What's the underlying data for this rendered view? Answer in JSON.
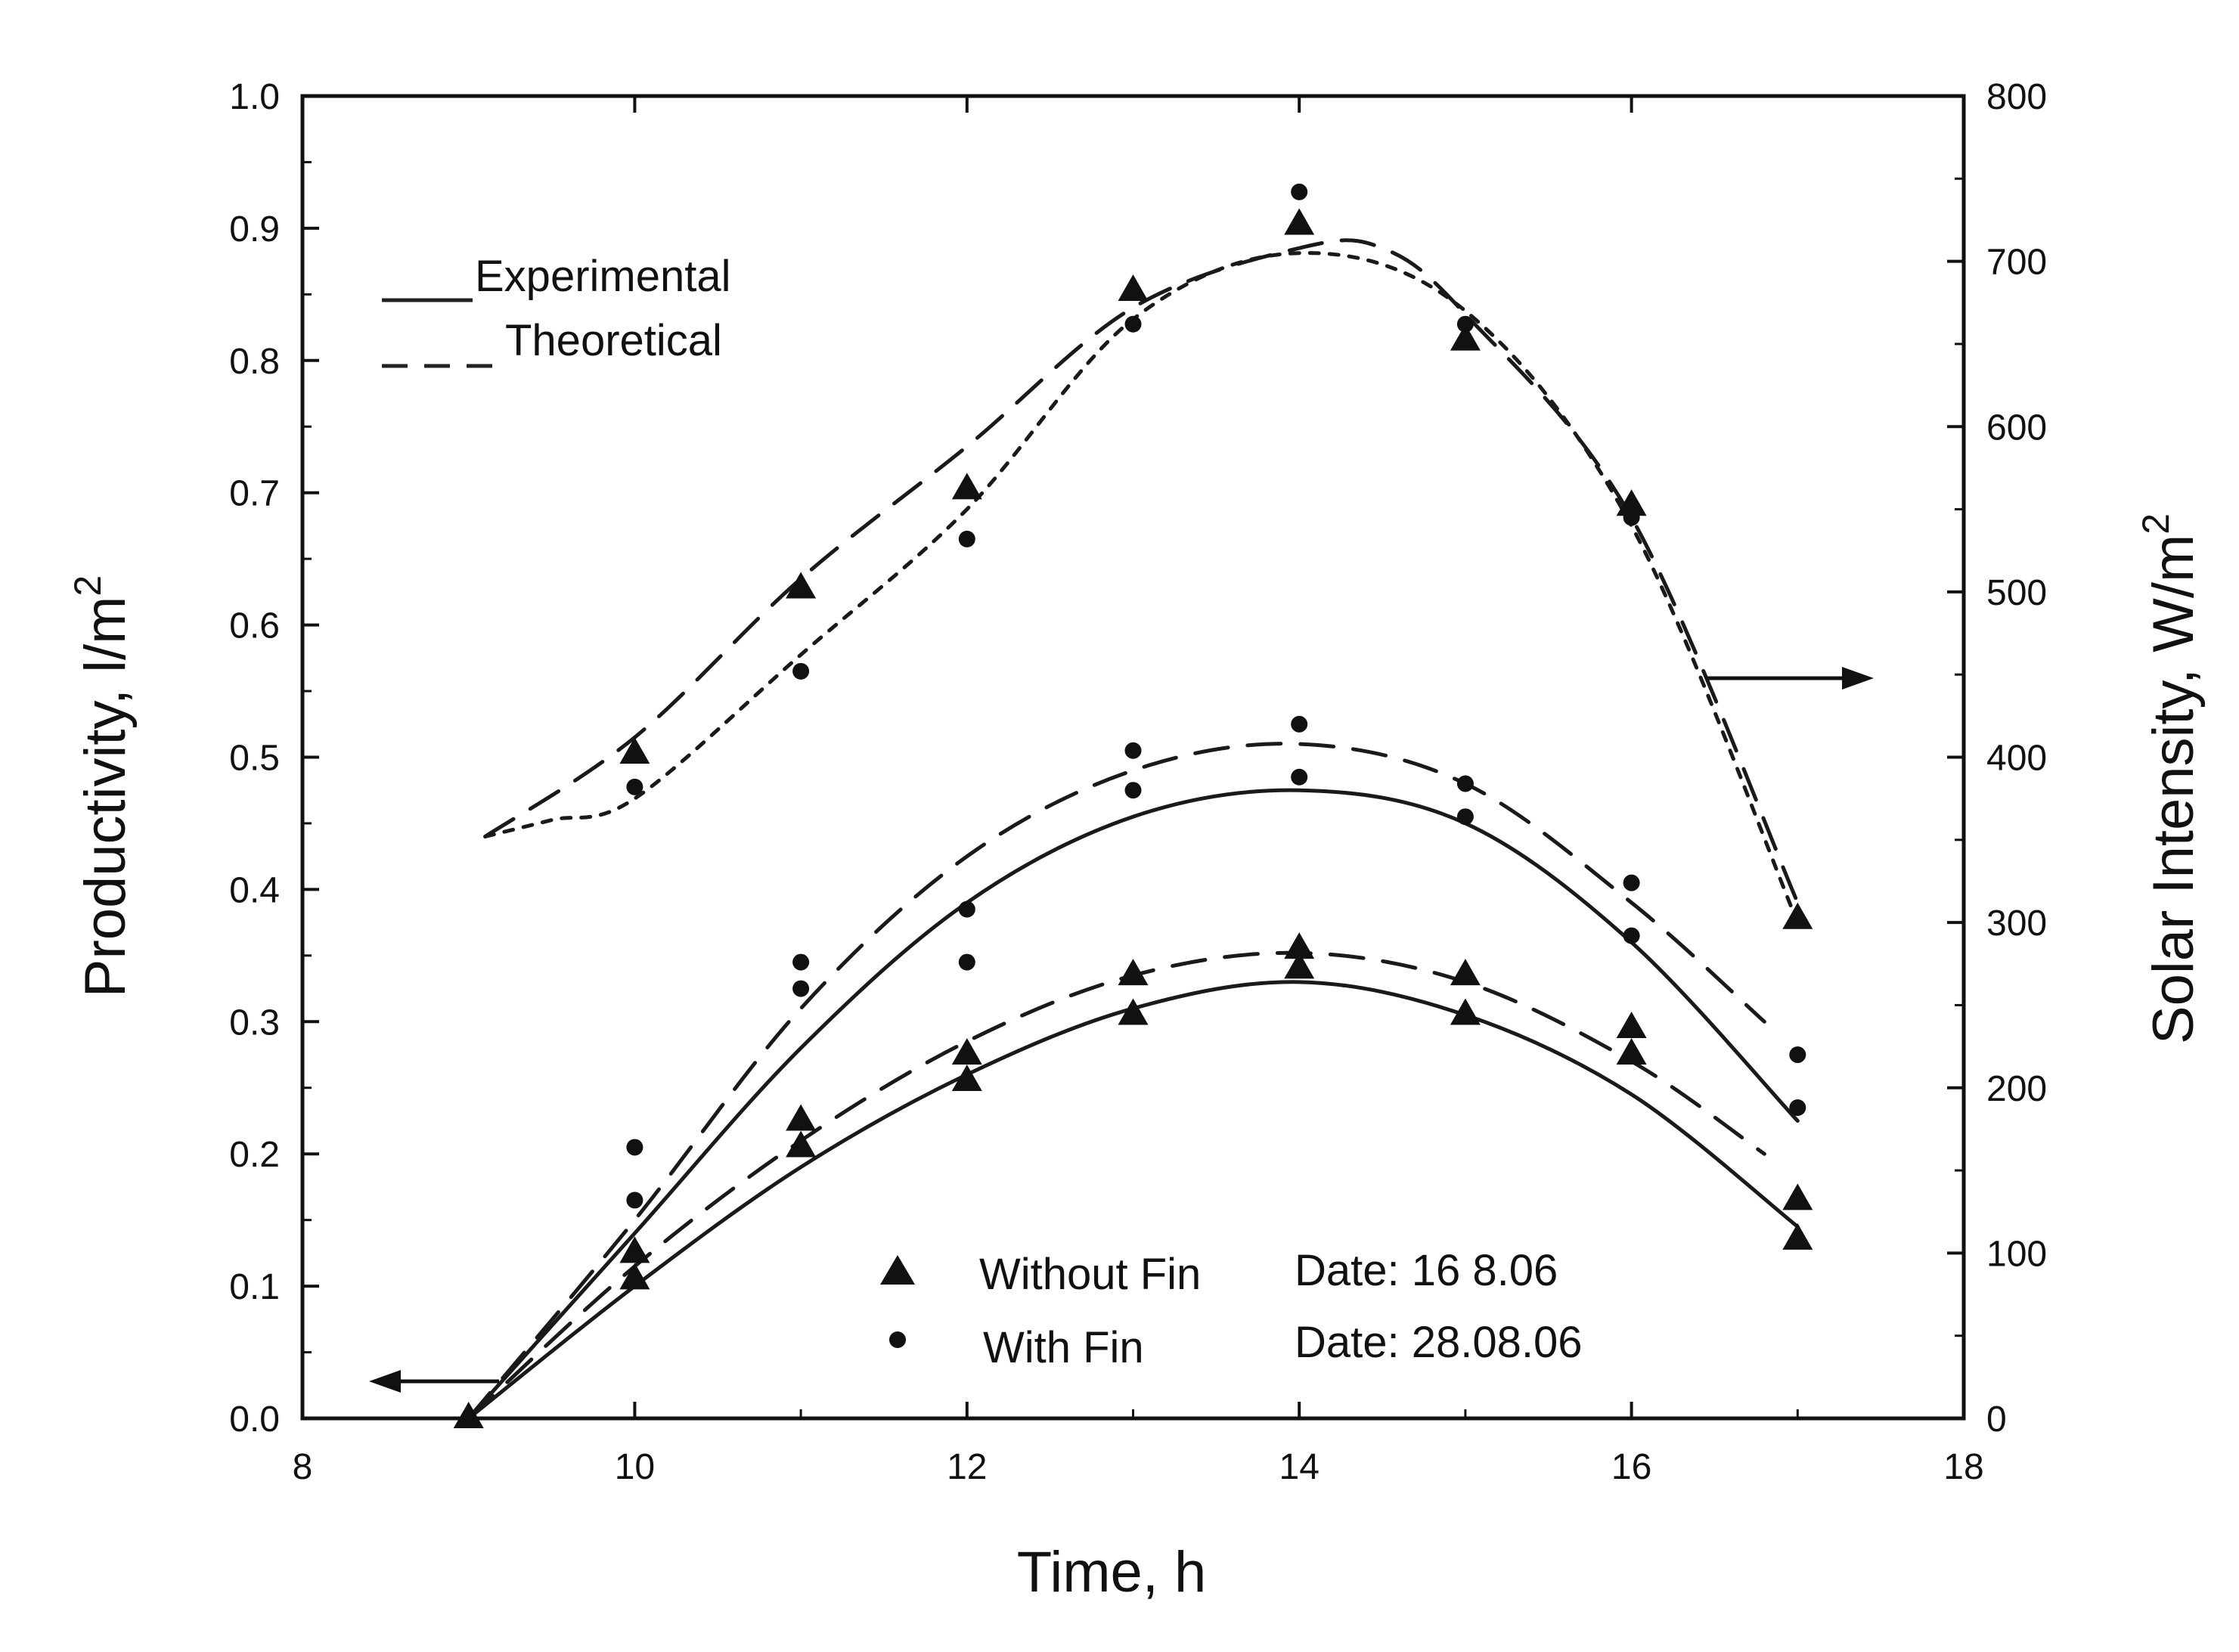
{
  "chart_data": {
    "type": "scatter",
    "x_label": "Time, h",
    "y_label_left": "Productivity, l/m",
    "y_label_left_sup": "2",
    "y_label_right": "Solar Intensity, W/m",
    "y_label_right_sup": "2",
    "xlim": [
      8,
      18
    ],
    "ylim_left": [
      0.0,
      1.0
    ],
    "ylim_right": [
      0,
      800
    ],
    "x_ticks": [
      "8",
      "10",
      "12",
      "14",
      "16",
      "18"
    ],
    "y_left_ticks": [
      "0.0",
      "0.1",
      "0.2",
      "0.3",
      "0.4",
      "0.5",
      "0.6",
      "0.7",
      "0.8",
      "0.9",
      "1.0"
    ],
    "y_right_ticks": [
      "0",
      "100",
      "200",
      "300",
      "400",
      "500",
      "600",
      "700",
      "800"
    ],
    "line_legend": {
      "experimental": "Experimental",
      "theoretical": "Theoretical"
    },
    "marker_legend": [
      {
        "marker": "triangle",
        "label": "Without Fin",
        "date": "Date: 16 8.06"
      },
      {
        "marker": "circle",
        "label": "With Fin",
        "date": "Date:  28.08.06"
      }
    ],
    "series": [
      {
        "name": "Without Fin productivity (experimental)",
        "axis": "left",
        "marker": "triangle",
        "x": [
          9,
          10,
          11,
          12,
          13,
          14,
          15,
          16,
          17
        ],
        "y": [
          0.0,
          0.105,
          0.205,
          0.255,
          0.305,
          0.34,
          0.305,
          0.275,
          0.135
        ],
        "curve": {
          "style": "solid",
          "x": [
            9,
            10,
            11,
            12,
            13,
            14,
            15,
            16,
            17
          ],
          "y": [
            0.0,
            0.1,
            0.19,
            0.26,
            0.31,
            0.33,
            0.305,
            0.245,
            0.145
          ]
        }
      },
      {
        "name": "Without Fin productivity (theoretical)",
        "axis": "left",
        "marker": "triangle",
        "x": [
          10,
          11,
          12,
          13,
          14,
          15,
          16,
          17
        ],
        "y": [
          0.125,
          0.225,
          0.275,
          0.335,
          0.355,
          0.335,
          0.295,
          0.165
        ],
        "curve": {
          "style": "dashed",
          "x": [
            9,
            10,
            11,
            12,
            13,
            14,
            15,
            16,
            16.8
          ],
          "y": [
            0.0,
            0.115,
            0.21,
            0.285,
            0.335,
            0.352,
            0.33,
            0.27,
            0.2
          ]
        }
      },
      {
        "name": "With Fin productivity (experimental)",
        "axis": "left",
        "marker": "circle",
        "x": [
          9,
          10,
          11,
          12,
          13,
          14,
          15,
          16,
          17
        ],
        "y": [
          0.0,
          0.165,
          0.325,
          0.345,
          0.475,
          0.485,
          0.455,
          0.365,
          0.235
        ],
        "curve": {
          "style": "solid",
          "x": [
            9,
            10,
            11,
            12,
            13,
            14,
            15,
            16,
            17
          ],
          "y": [
            0.0,
            0.14,
            0.28,
            0.39,
            0.455,
            0.475,
            0.45,
            0.36,
            0.225
          ]
        }
      },
      {
        "name": "With Fin productivity (theoretical)",
        "axis": "left",
        "marker": "circle",
        "x": [
          10,
          11,
          12,
          13,
          14,
          15,
          16,
          17
        ],
        "y": [
          0.205,
          0.345,
          0.385,
          0.505,
          0.525,
          0.48,
          0.405,
          0.275
        ],
        "curve": {
          "style": "dashed",
          "x": [
            9,
            10,
            11,
            12,
            13,
            14,
            15,
            16,
            16.8
          ],
          "y": [
            0.0,
            0.15,
            0.31,
            0.425,
            0.49,
            0.51,
            0.48,
            0.39,
            0.3
          ]
        }
      },
      {
        "name": "Solar intensity (Without Fin)",
        "axis": "right",
        "marker": "triangle",
        "x": [
          10,
          11,
          12,
          13,
          14,
          15,
          16,
          17
        ],
        "y": [
          402,
          502,
          562,
          682,
          722,
          652,
          552,
          302
        ],
        "curve": {
          "style": "dashed",
          "x": [
            9.1,
            10,
            11,
            12,
            13,
            14,
            14.5,
            15,
            16,
            17
          ],
          "y": [
            352,
            412,
            508,
            588,
            672,
            708,
            708,
            668,
            545,
            312
          ]
        }
      },
      {
        "name": "Solar intensity (With Fin)",
        "axis": "right",
        "marker": "circle",
        "x": [
          10,
          11,
          12,
          13,
          14,
          15,
          16
        ],
        "y": [
          382,
          452,
          532,
          662,
          742,
          662,
          545
        ],
        "curve": {
          "style": "dotted",
          "x": [
            9.1,
            9.5,
            10,
            11,
            12,
            13,
            14,
            15,
            16,
            17
          ],
          "y": [
            352,
            362,
            375,
            462,
            550,
            665,
            705,
            670,
            540,
            300
          ]
        }
      }
    ],
    "annotations": [
      {
        "type": "arrow",
        "direction": "left",
        "axis": "left",
        "note": "points to productivity axis"
      },
      {
        "type": "arrow",
        "direction": "right",
        "axis": "right",
        "note": "points to solar intensity axis"
      }
    ]
  }
}
